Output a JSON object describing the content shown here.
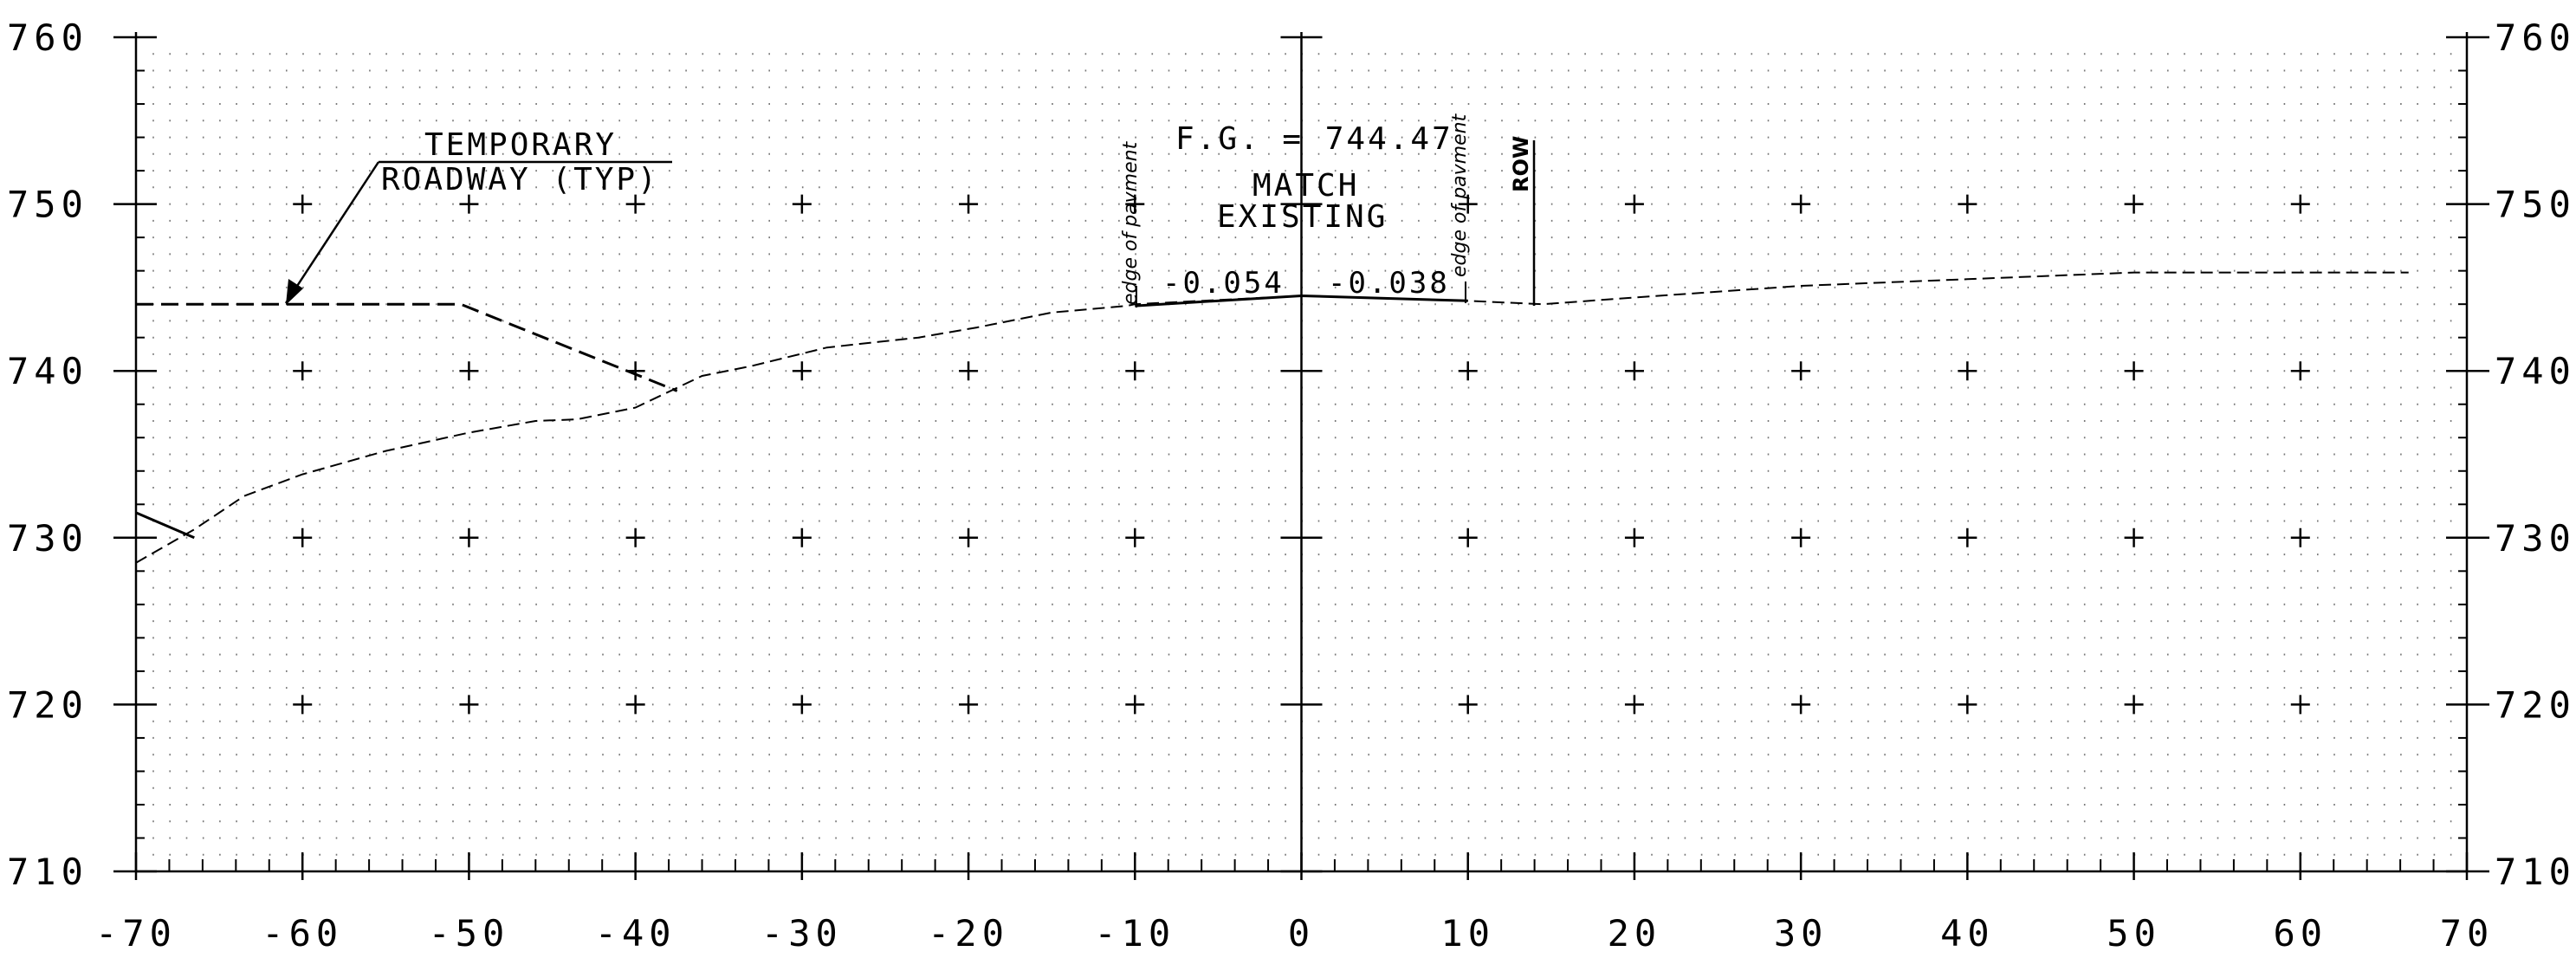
{
  "chart_data": {
    "type": "line",
    "x_ticks": [
      -70,
      -60,
      -50,
      -40,
      -30,
      -20,
      -10,
      0,
      10,
      20,
      30,
      40,
      50,
      60,
      70
    ],
    "x_tick_labels": [
      "-70",
      "-60",
      "-50",
      "-40",
      "-30",
      "-20",
      "-10",
      "0",
      "10",
      "20",
      "30",
      "40",
      "50",
      "60",
      "70"
    ],
    "y_ticks": [
      710,
      720,
      730,
      740,
      750,
      760
    ],
    "y_tick_labels": [
      "710",
      "720",
      "730",
      "740",
      "750",
      "760"
    ],
    "xlim": [
      -70,
      70
    ],
    "ylim": [
      710,
      760
    ],
    "grid": true,
    "series": [
      {
        "style": "dashed-fine",
        "x": [
          -70,
          -66.5,
          -63.5,
          -60,
          -55,
          -50,
          -46,
          -43.5,
          -40,
          -36,
          -33,
          -28.5,
          -23,
          -19.5,
          -15,
          -10.5,
          -10,
          0,
          10,
          14.5,
          20,
          30,
          40,
          50,
          66.5
        ],
        "y": [
          728.5,
          730.5,
          732.5,
          733.8,
          735.2,
          736.3,
          737,
          737.1,
          737.8,
          739.7,
          740.3,
          741.4,
          742,
          742.6,
          743.5,
          743.9,
          744,
          744.5,
          744.2,
          744,
          744.4,
          745.1,
          745.5,
          745.9,
          745.9
        ]
      },
      {
        "style": "dashed-heavy",
        "x": [
          -70,
          -61.5,
          -50.5,
          -37.5
        ],
        "y": [
          744,
          744,
          744,
          738.8
        ]
      },
      {
        "style": "solid",
        "x": [
          -10,
          0,
          10
        ],
        "y": [
          743.9,
          744.5,
          744.2
        ]
      },
      {
        "style": "solid",
        "x": [
          -70,
          -66.5
        ],
        "y": [
          731.5,
          730
        ]
      }
    ],
    "annotations": {
      "temporary_line1": "TEMPORARY",
      "temporary_line2": "ROADWAY (TYP)",
      "fg_label": "F.G. = 744.47",
      "match_line1": "MATCH",
      "match_line2": "EXISTING",
      "slope_left": "-0.054",
      "slope_right": "-0.038",
      "edge_left": "edge of pavment",
      "edge_right": "edge of pavment",
      "row": "ROW"
    }
  }
}
